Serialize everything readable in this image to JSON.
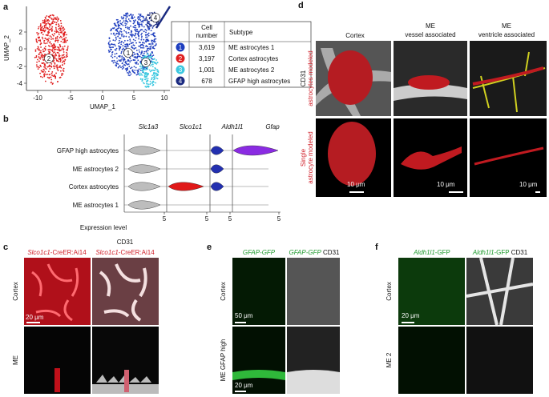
{
  "a": {
    "label": "a",
    "y_axis": "UMAP_2",
    "x_axis": "UMAP_1",
    "x_ticks": [
      "-10",
      "-5",
      "0",
      "5",
      "10"
    ],
    "y_ticks": [
      "2",
      "0",
      "-2",
      "-4"
    ],
    "cluster_labels": [
      "1",
      "2",
      "3",
      "4"
    ],
    "table": {
      "count_header": [
        "Cell",
        "number"
      ],
      "subtype_header": "Subtype",
      "rows": [
        [
          "1",
          "3,619",
          "ME astrocytes 1"
        ],
        [
          "2",
          "3,197",
          "Cortex astrocytes"
        ],
        [
          "3",
          "1,001",
          "ME astrocytes 2"
        ],
        [
          "4",
          "678",
          "GFAP high astrocytes"
        ]
      ]
    }
  },
  "b": {
    "label": "b",
    "genes": [
      "Slc1a3",
      "Slco1c1",
      "Aldh1l1",
      "Gfap"
    ],
    "rows": [
      "GFAP high astrocytes",
      "ME astrocytes 2",
      "Cortex astrocytes",
      "ME astrocytes 1"
    ],
    "x_ticks": [
      "5",
      "5",
      "5",
      "5"
    ],
    "x_axis": "Expression level"
  },
  "c": {
    "label": "c",
    "header_top": "CD31",
    "gene": "Slco1c1",
    "reporter": "-CreER:Ai14",
    "rows": [
      "Cortex",
      "ME"
    ],
    "scale": "20 μm"
  },
  "d": {
    "label": "d",
    "columns": [
      [
        "Cortex"
      ],
      [
        "ME",
        "vessel associated"
      ],
      [
        "ME",
        "ventricle associated"
      ]
    ],
    "row1": [
      "CD31",
      "astrocytes modeled"
    ],
    "row2": [
      "Single",
      "astrocyte modeled"
    ],
    "scales": [
      "10 μm",
      "10 μm",
      "10 μm"
    ]
  },
  "e": {
    "label": "e",
    "header_green": "GFAP-GFP",
    "header_green2": "GFAP-GFP",
    "header_white": "CD31",
    "rows": [
      "Cortex",
      "ME GFAP high"
    ],
    "scales": [
      "50 μm",
      "20 μm"
    ]
  },
  "f": {
    "label": "f",
    "gene": "Aldh1l1",
    "suffix": "-GFP",
    "gene2": "Aldh1l1",
    "suffix2": "-GFP",
    "header_white": "CD31",
    "rows": [
      "Cortex",
      "ME 2"
    ],
    "scale": "20 μm"
  }
}
